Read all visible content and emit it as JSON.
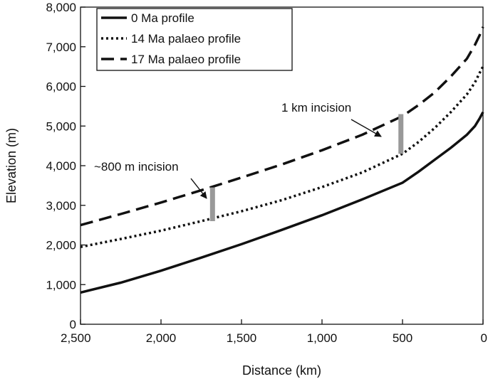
{
  "chart_data": {
    "type": "line",
    "xlabel": "Distance (km)",
    "ylabel": "Elevation (m)",
    "xlim": [
      2500,
      0
    ],
    "ylim": [
      0,
      8000
    ],
    "x_reversed": true,
    "x_ticks": [
      2500,
      2000,
      1500,
      1000,
      500,
      0
    ],
    "x_tick_labels": [
      "2,500",
      "2,000",
      "1,500",
      "1,000",
      "500",
      "0"
    ],
    "y_ticks": [
      0,
      1000,
      2000,
      3000,
      4000,
      5000,
      6000,
      7000,
      8000
    ],
    "y_tick_labels": [
      "0",
      "1,000",
      "2,000",
      "3,000",
      "4,000",
      "5,000",
      "6,000",
      "7,000",
      "8,000"
    ],
    "grid": false,
    "legend_position": "top-left",
    "series": [
      {
        "name": "0 Ma profile",
        "style": "solid",
        "x": [
          2500,
          2250,
          2000,
          1750,
          1500,
          1250,
          1000,
          750,
          500,
          400,
          300,
          200,
          100,
          50,
          20,
          0
        ],
        "y": [
          800,
          1050,
          1350,
          1680,
          2020,
          2380,
          2750,
          3150,
          3570,
          3850,
          4150,
          4450,
          4780,
          5000,
          5200,
          5350
        ]
      },
      {
        "name": "14 Ma palaeo profile",
        "style": "dotted",
        "x": [
          2500,
          2250,
          2000,
          1750,
          1500,
          1250,
          1000,
          750,
          500,
          400,
          300,
          200,
          100,
          50,
          20,
          0
        ],
        "y": [
          1950,
          2150,
          2360,
          2600,
          2850,
          3130,
          3460,
          3830,
          4300,
          4600,
          4950,
          5350,
          5800,
          6100,
          6350,
          6500
        ]
      },
      {
        "name": "17 Ma palaeo profile",
        "style": "dashed",
        "x": [
          2500,
          2250,
          2000,
          1750,
          1500,
          1250,
          1000,
          750,
          500,
          400,
          300,
          200,
          100,
          50,
          20,
          0
        ],
        "y": [
          2500,
          2780,
          3070,
          3380,
          3700,
          4030,
          4390,
          4780,
          5250,
          5530,
          5850,
          6250,
          6700,
          7050,
          7300,
          7500
        ]
      }
    ],
    "annotations": [
      {
        "text": "~800 m incision",
        "bar_x": 1680,
        "bar_y0": 2600,
        "bar_y1": 3450
      },
      {
        "text": "1 km incision",
        "bar_x": 510,
        "bar_y0": 4300,
        "bar_y1": 5300
      }
    ],
    "colors": {
      "series": "#111111",
      "annotation_bar": "#999999"
    }
  }
}
